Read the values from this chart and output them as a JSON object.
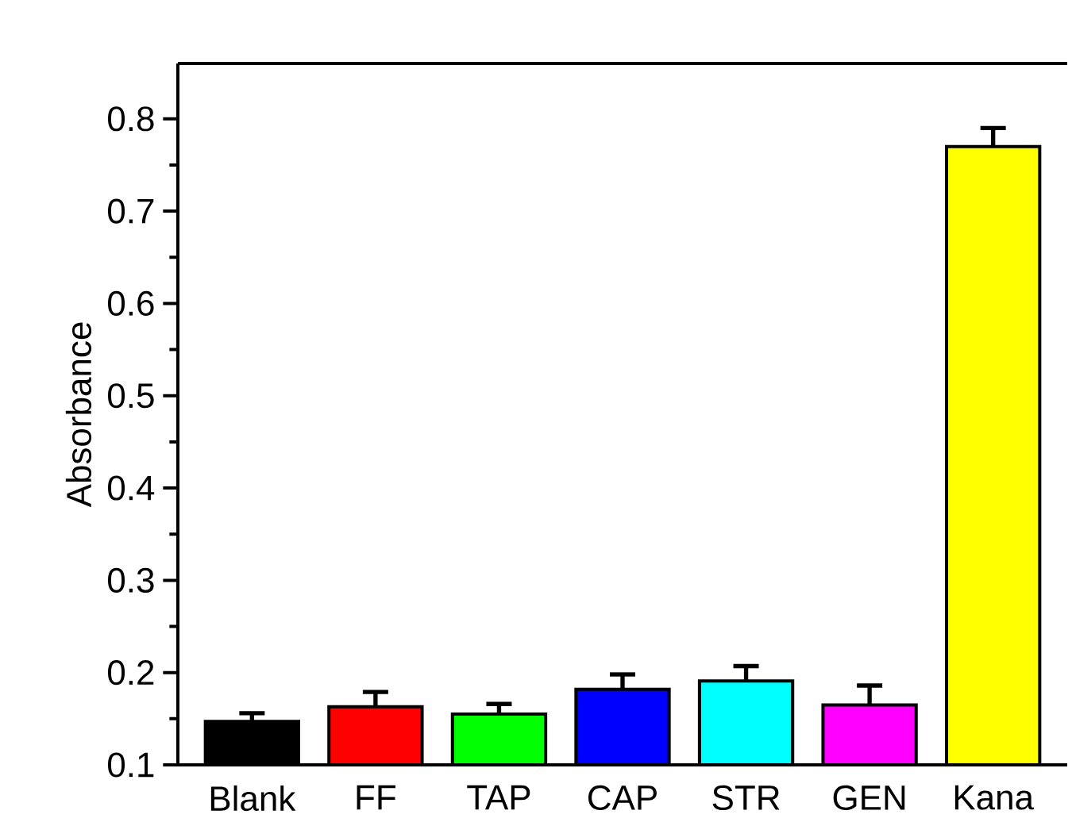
{
  "chart_data": {
    "type": "bar",
    "ylabel": "Absorbance",
    "categories": [
      "Blank",
      "FF",
      "TAP",
      "CAP",
      "STR",
      "GEN",
      "Kana"
    ],
    "values": [
      0.147,
      0.163,
      0.155,
      0.182,
      0.191,
      0.165,
      0.77
    ],
    "errors": [
      0.009,
      0.016,
      0.011,
      0.016,
      0.016,
      0.021,
      0.02
    ],
    "colors": [
      "#000000",
      "#ff0000",
      "#00ff00",
      "#0000ff",
      "#00ffff",
      "#ff00ff",
      "#ffff00"
    ],
    "ylim": [
      0.1,
      0.86
    ],
    "yticks": [
      0.1,
      0.2,
      0.3,
      0.4,
      0.5,
      0.6,
      0.7,
      0.8
    ],
    "grid": false
  }
}
